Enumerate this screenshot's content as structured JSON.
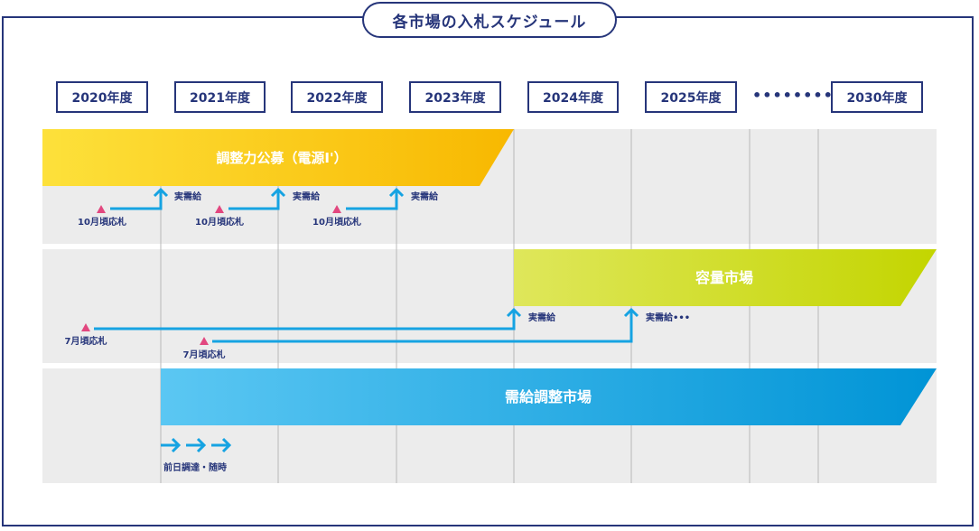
{
  "title": "各市場の入札スケジュール",
  "years": [
    "2020年度",
    "2021年度",
    "2022年度",
    "2023年度",
    "2024年度",
    "2025年度",
    "2030年度"
  ],
  "ellipsis": "••••••••••",
  "bands": {
    "adjust": "調整力公募（電源Ⅰ'）",
    "capacity": "容量市場",
    "balancing": "需給調整市場"
  },
  "labels": {
    "oct_bid": "10月頃応札",
    "jul_bid": "7月頃応札",
    "supply": "実需給",
    "supply_more": "実需給•••",
    "day_ahead": "前日調達・随時"
  },
  "colors": {
    "navy": "#26357a",
    "arrow": "#16a3e2",
    "marker": "#e2477f",
    "grid": "#ececec",
    "adjust_from": "#fde13b",
    "adjust_to": "#f8b800",
    "capacity_from": "#dfe75b",
    "capacity_to": "#c3d500",
    "balancing_from": "#5bc7f3",
    "balancing_to": "#0094d6"
  }
}
